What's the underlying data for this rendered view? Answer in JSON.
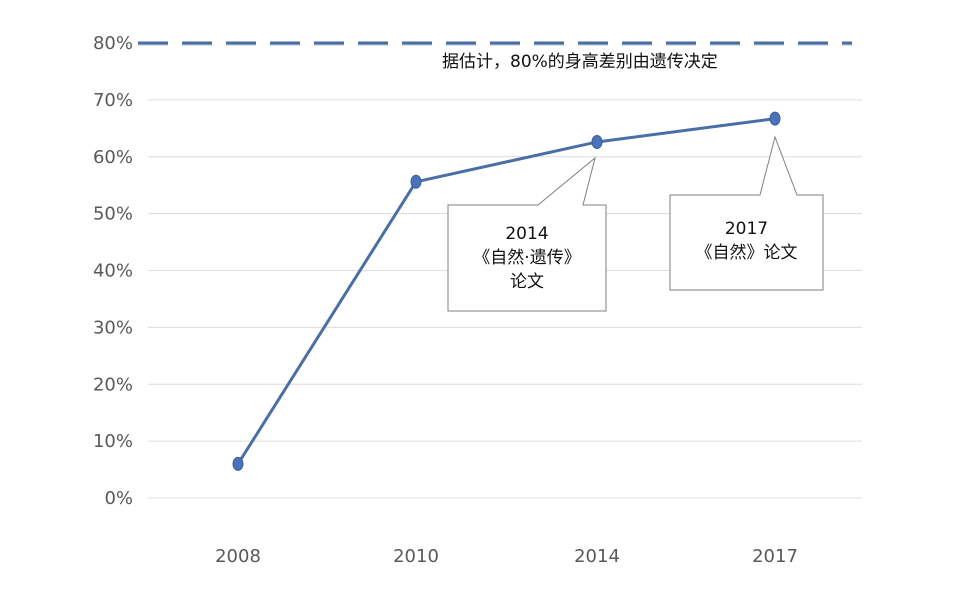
{
  "chart_data": {
    "type": "line",
    "categories": [
      "2008",
      "2010",
      "2014",
      "2017"
    ],
    "series": [
      {
        "values": [
          6,
          55.6,
          62.6,
          66.7
        ],
        "color": "#4a6fa5"
      }
    ],
    "y_unit": "%",
    "ylim": [
      0,
      80
    ],
    "yticks": [
      "0%",
      "10%",
      "20%",
      "30%",
      "40%",
      "50%",
      "60%",
      "70%",
      "80%"
    ],
    "grid": true,
    "reference_line": {
      "value": 80,
      "style": "dashed",
      "color": "#4a6fa5",
      "label": "据估计，80%的身高差别由遗传决定"
    },
    "annotations": [
      {
        "category": "2014",
        "lines": [
          "2014",
          "《自然·遗传》",
          "论文"
        ]
      },
      {
        "category": "2017",
        "lines": [
          "2017",
          "《自然》论文"
        ]
      }
    ]
  }
}
